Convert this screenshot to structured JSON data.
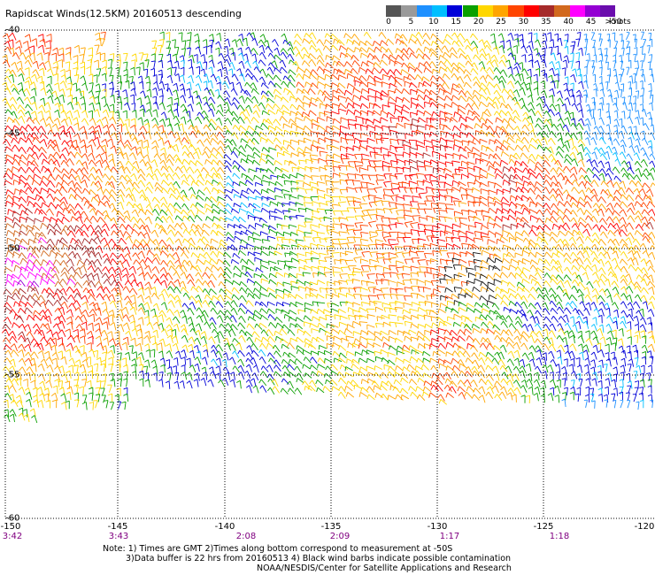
{
  "title": "Rapidscat Winds(12.5KM) 20160513 descending",
  "legend": {
    "colors": [
      "#555555",
      "#9a9a9a",
      "#1e90ff",
      "#00bfff",
      "#0000d8",
      "#0aa000",
      "#ffd700",
      "#ffa500",
      "#ff4500",
      "#ff0000",
      "#a52a2a",
      "#d2691e",
      "#ff00ff",
      "#9400d3",
      "#6a0dad"
    ],
    "labels": [
      "0",
      "5",
      "10",
      "15",
      "20",
      "25",
      "30",
      "35",
      "40",
      "45",
      ">50"
    ],
    "unit": "knots"
  },
  "map": {
    "lat_labels": [
      "-40",
      "-45",
      "-50",
      "-55",
      "-60"
    ],
    "lon_labels": [
      "-150",
      "-145",
      "-140",
      "-135",
      "-130",
      "-125",
      "-120"
    ],
    "time_labels": [
      "3:42",
      "3:43",
      "2:08",
      "2:09",
      "1:17",
      "1:18"
    ]
  },
  "notes": {
    "line1": "Note: 1) Times are GMT 2)Times along bottom correspond to measurement at -50S",
    "line2": "3)Data buffer is 22 hrs from 20160513 4) Black wind barbs indicate possible contamination",
    "line3": "NOAA/NESDIS/Center for Satellite Applications and Research"
  }
}
